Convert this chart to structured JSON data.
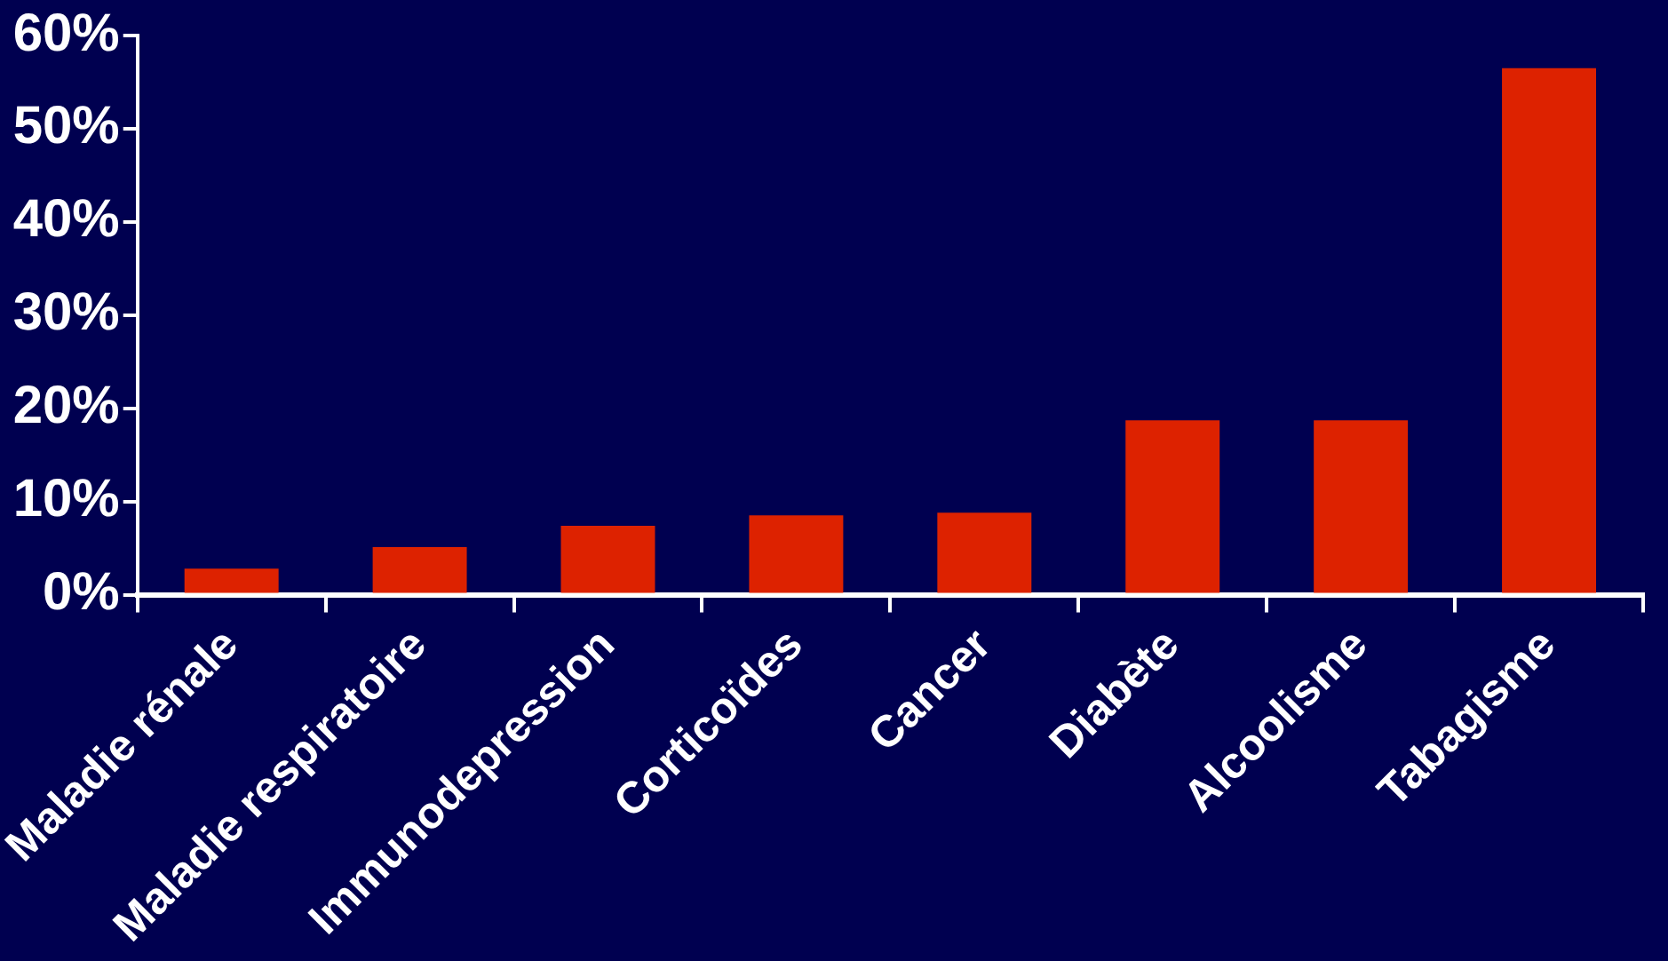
{
  "chart_data": {
    "type": "bar",
    "categories": [
      "Maladie rénale",
      "Maladie respiratoire",
      "Immunodepression",
      "Corticoïdes",
      "Cancer",
      "Diabète",
      "Alcoolisme",
      "Tabagisme"
    ],
    "values": [
      2.8,
      5.1,
      7.4,
      8.5,
      8.8,
      18.7,
      18.7,
      56.5
    ],
    "color": "#dd2200",
    "ylim": [
      0,
      60
    ],
    "yticks": [
      {
        "value": 0,
        "label": "0%"
      },
      {
        "value": 10,
        "label": "10%"
      },
      {
        "value": 20,
        "label": "20%"
      },
      {
        "value": 30,
        "label": "30%"
      },
      {
        "value": 40,
        "label": "40%"
      },
      {
        "value": 50,
        "label": "50%"
      },
      {
        "value": 60,
        "label": "60%"
      }
    ],
    "grid": false,
    "legend": false
  }
}
